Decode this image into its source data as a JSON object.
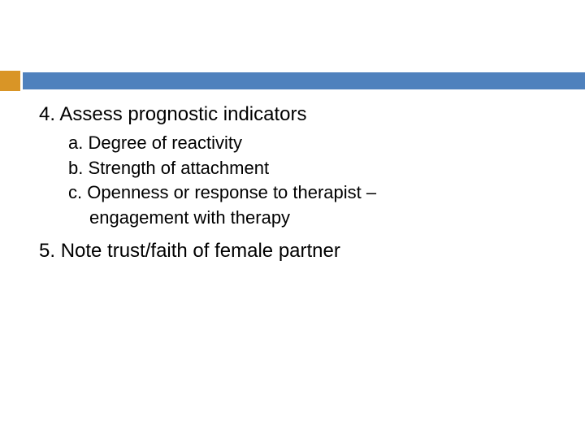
{
  "accent_color": "#d99526",
  "bar_color": "#4f81bd",
  "background_color": "#ffffff",
  "text_color": "#000000",
  "items": {
    "first": {
      "number": "4.",
      "text": "Assess prognostic indicators",
      "subs": {
        "a": {
          "letter": "a.",
          "text": "Degree of reactivity"
        },
        "b": {
          "letter": "b.",
          "text": "Strength of attachment"
        },
        "c": {
          "letter": "c.",
          "line1": "Openness or response to therapist –",
          "line2": "engagement with therapy"
        }
      }
    },
    "second": {
      "number": "5.",
      "text": "Note trust/faith of female partner"
    }
  }
}
